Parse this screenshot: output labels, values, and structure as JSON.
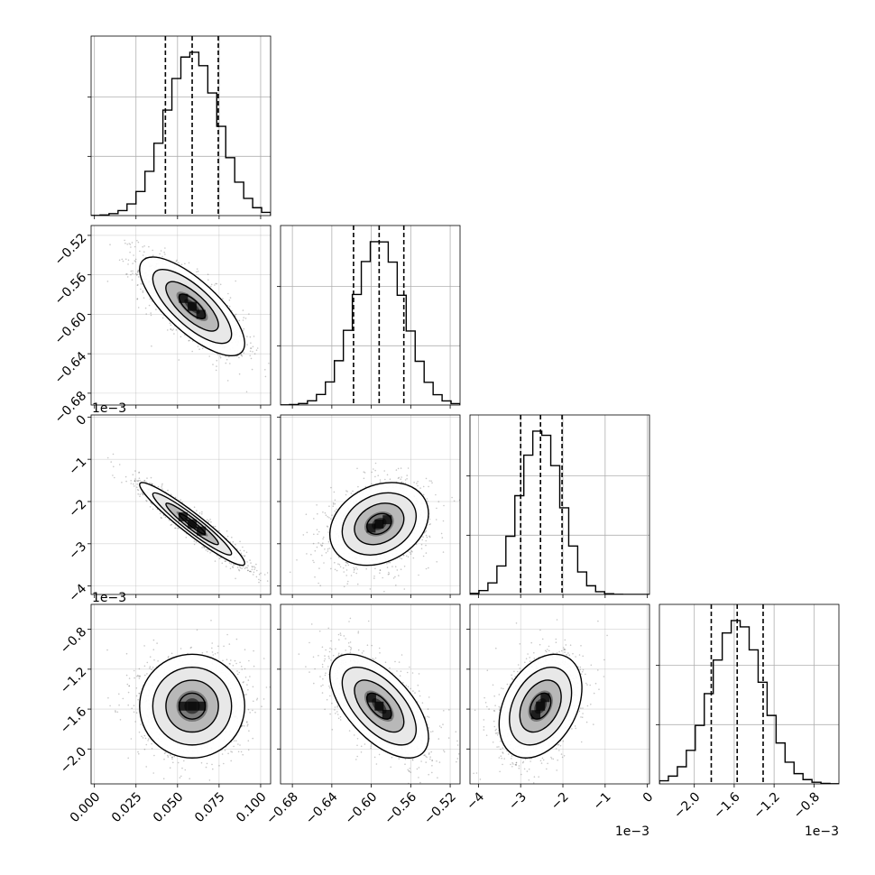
{
  "chart_data": {
    "type": "corner",
    "title": "",
    "grid": true,
    "colors": {
      "axis": "#000000",
      "grid": "#b0b0b0",
      "hist": "#000000",
      "scatter": "#000000"
    },
    "parameters": [
      {
        "index": 0,
        "range": [
          -0.002,
          0.106
        ],
        "ticks": [
          0.0,
          0.025,
          0.05,
          0.075,
          0.1
        ],
        "tick_labels": [
          "0.000",
          "0.025",
          "0.050",
          "0.075",
          "0.100"
        ],
        "offset": "",
        "quantiles": [
          0.0427,
          0.0588,
          0.0745
        ],
        "median": 0.0588,
        "sigma": 0.0158
      },
      {
        "index": 1,
        "range": [
          -0.692,
          -0.51
        ],
        "ticks": [
          -0.68,
          -0.64,
          -0.6,
          -0.56,
          -0.52
        ],
        "tick_labels": [
          "−0.68",
          "−0.64",
          "−0.60",
          "−0.56",
          "−0.52"
        ],
        "offset": "",
        "quantiles": [
          -0.618,
          -0.592,
          -0.567
        ],
        "median": -0.592,
        "sigma": 0.025
      },
      {
        "index": 2,
        "range": [
          -4.2,
          0.05
        ],
        "ticks": [
          -4,
          -3,
          -2,
          -1,
          0
        ],
        "tick_labels": [
          "−4",
          "−3",
          "−2",
          "−1",
          "0"
        ],
        "offset": "1e−3",
        "quantiles": [
          -3.0,
          -2.53,
          -2.02
        ],
        "median": -2.53,
        "sigma": 0.49
      },
      {
        "index": 3,
        "range": [
          -2.35,
          -0.55
        ],
        "ticks": [
          -2.0,
          -1.6,
          -1.2,
          -0.8
        ],
        "tick_labels": [
          "−2.0",
          "−1.6",
          "−1.2",
          "−0.8"
        ],
        "offset": "1e−3",
        "quantiles": [
          -1.83,
          -1.57,
          -1.31
        ],
        "median": -1.57,
        "sigma": 0.26
      }
    ],
    "correlations": [
      {
        "params": [
          0,
          1
        ],
        "rho": -0.75
      },
      {
        "params": [
          0,
          2
        ],
        "rho": -0.95
      },
      {
        "params": [
          0,
          3
        ],
        "rho": 0.0
      },
      {
        "params": [
          1,
          2
        ],
        "rho": 0.25
      },
      {
        "params": [
          1,
          3
        ],
        "rho": -0.6
      },
      {
        "params": [
          2,
          3
        ],
        "rho": 0.35
      }
    ],
    "contour_levels": [
      0.5,
      1.0,
      1.5,
      2.0
    ]
  }
}
